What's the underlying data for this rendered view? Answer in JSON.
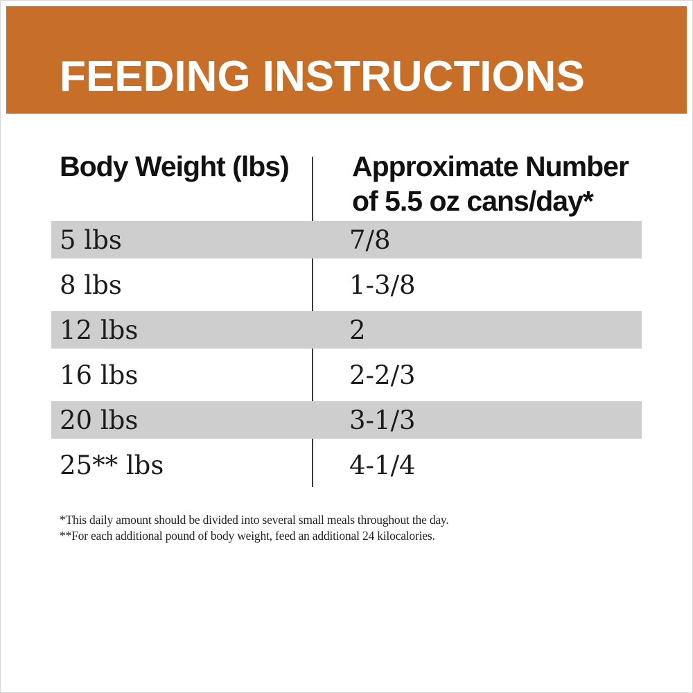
{
  "page": {
    "title": "FEEDING INSTRUCTIONS",
    "accent_color": "#c76f28",
    "stripe_color": "#cecece",
    "divider_color": "#3d3d3d"
  },
  "table": {
    "columns": {
      "weight": {
        "label": "Body Weight (lbs)"
      },
      "cans": {
        "label_line1": "Approximate Number",
        "label_line2": "of 5.5 oz cans/day*"
      }
    },
    "rows": [
      {
        "weight": "5 lbs",
        "cans": "7/8",
        "striped": true
      },
      {
        "weight": "8 lbs",
        "cans": "1-3/8",
        "striped": false
      },
      {
        "weight": "12 lbs",
        "cans": "2",
        "striped": true
      },
      {
        "weight": "16 lbs",
        "cans": "2-2/3",
        "striped": false
      },
      {
        "weight": "20 lbs",
        "cans": "3-1/3",
        "striped": true
      },
      {
        "weight": "25** lbs",
        "cans": "4-1/4",
        "striped": false
      }
    ]
  },
  "footnotes": [
    "*This daily amount should be divided into several small meals throughout the day.",
    "**For each additional pound of body weight, feed an additional 24 kilocalories."
  ]
}
